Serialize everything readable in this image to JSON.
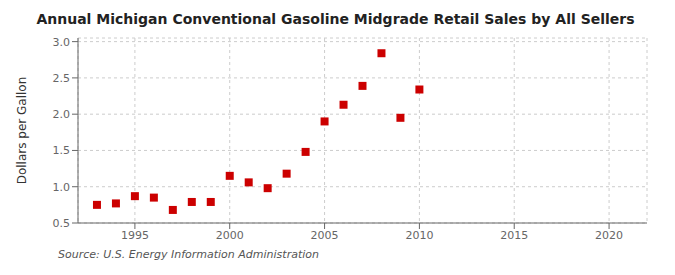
{
  "chart_data": {
    "type": "scatter",
    "title": "Annual Michigan Conventional Gasoline Midgrade Retail Sales by All Sellers",
    "ylabel": "Dollars per Gallon",
    "source": "Source: U.S. Energy Information Administration",
    "x": [
      1993,
      1994,
      1995,
      1996,
      1997,
      1998,
      1999,
      2000,
      2001,
      2002,
      2003,
      2004,
      2005,
      2006,
      2007,
      2008,
      2009,
      2010
    ],
    "values": [
      0.75,
      0.77,
      0.87,
      0.85,
      0.68,
      0.79,
      0.79,
      1.15,
      1.06,
      0.98,
      1.18,
      1.48,
      1.9,
      2.13,
      2.39,
      2.84,
      1.95,
      2.34
    ],
    "color": "#cc0000",
    "marker": "square",
    "xlim": [
      1992.0,
      2022.0
    ],
    "ylim": [
      0.5,
      3.05
    ],
    "xticks": [
      1995,
      2000,
      2005,
      2010,
      2015,
      2020
    ],
    "yticks": [
      0.5,
      {
        "value": 1.0,
        "label": "1.0"
      },
      1.5,
      {
        "value": 2.0,
        "label": "2.0"
      },
      2.5,
      {
        "value": 3.0,
        "label": "3.0"
      }
    ],
    "grid": true
  }
}
